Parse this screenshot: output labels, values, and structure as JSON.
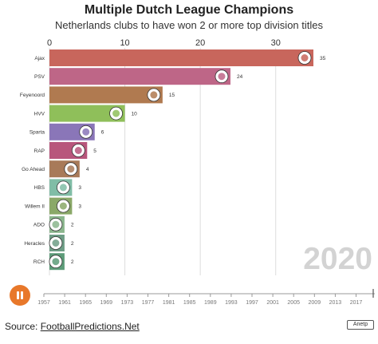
{
  "chart_data": {
    "type": "bar",
    "title": "Multiple Dutch League Champions",
    "subtitle": "Netherlands clubs to have won 2 or more top division titles",
    "xlim": [
      0,
      35
    ],
    "x_ticks": [
      "0",
      "10",
      "20",
      "30"
    ],
    "categories": [
      "Ajax",
      "PSV",
      "Feyenoord",
      "HVV",
      "Sparta",
      "RAP",
      "Go Ahead",
      "HBS",
      "Willem II",
      "ADO",
      "Heracles",
      "RCH"
    ],
    "values": [
      35,
      24,
      15,
      10,
      6,
      5,
      4,
      3,
      3,
      2,
      2,
      2
    ],
    "colors": [
      "#c8665c",
      "#be6687",
      "#b07a50",
      "#8fbf5a",
      "#8a76b8",
      "#b8567c",
      "#a87a59",
      "#80bda6",
      "#8aa868",
      "#8bb68d",
      "#6e9d86",
      "#5d9c79"
    ],
    "current_year": "2020",
    "timeline": {
      "years": [
        "1957",
        "1961",
        "1965",
        "1969",
        "1973",
        "1977",
        "1981",
        "1985",
        "1989",
        "1993",
        "1997",
        "2001",
        "2005",
        "2009",
        "2013",
        "2017"
      ],
      "position": 1.0
    },
    "legend": "none",
    "grid": true
  },
  "footer": {
    "source_prefix": "Source: ",
    "source_link": "FootballPredictions.Net",
    "logo_text": "Anetp"
  },
  "colors": {
    "play_button": "#e8782a",
    "grid": "#dddddd"
  },
  "icons": {
    "play": "pause-icon"
  }
}
